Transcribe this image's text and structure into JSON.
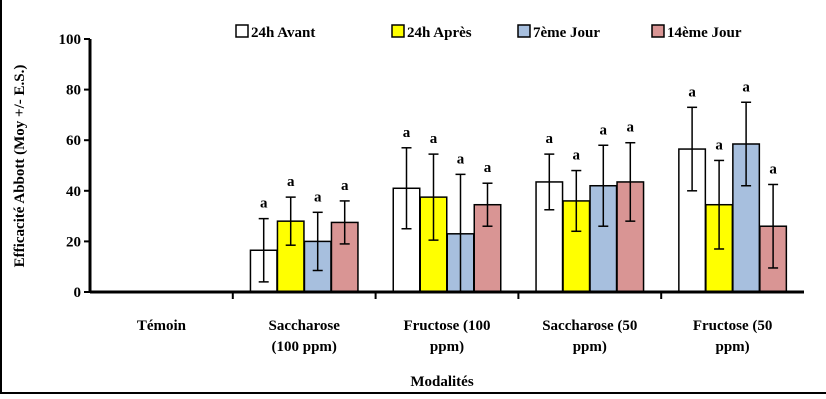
{
  "chart_data": {
    "type": "bar",
    "title": "",
    "xlabel": "Modalités",
    "ylabel": "Efficacité Abbott (Moy +/- E.S.)",
    "ylim": [
      0,
      100
    ],
    "yticks": [
      0,
      20,
      40,
      60,
      80,
      100
    ],
    "grid": false,
    "legend_position": "top",
    "categories": [
      [
        "Témoin"
      ],
      [
        "Saccharose",
        "(100 ppm)"
      ],
      [
        "Fructose  (100",
        "ppm)"
      ],
      [
        "Saccharose (50",
        "ppm)"
      ],
      [
        "Fructose (50",
        "ppm)"
      ]
    ],
    "series": [
      {
        "name": "24h Avant",
        "color": "#ffffff",
        "values": [
          0,
          16.5,
          41,
          43.5,
          56.5
        ],
        "errors": [
          0,
          12.5,
          16,
          11,
          16.5
        ],
        "letters": [
          "",
          "a",
          "a",
          "a",
          "a"
        ]
      },
      {
        "name": "24h Après",
        "color": "#ffff00",
        "values": [
          0,
          28,
          37.5,
          36,
          34.5
        ],
        "errors": [
          0,
          9.5,
          17,
          12,
          17.5
        ],
        "letters": [
          "",
          "a",
          "a",
          "a",
          "a"
        ]
      },
      {
        "name": "7ème Jour",
        "color": "#a7bfde",
        "values": [
          0,
          20,
          23,
          42,
          58.5
        ],
        "errors": [
          0,
          11.5,
          23.5,
          16,
          16.5
        ],
        "letters": [
          "",
          "a",
          "a",
          "a",
          "a"
        ]
      },
      {
        "name": "14ème Jour",
        "color": "#d99594",
        "values": [
          0,
          27.5,
          34.5,
          43.5,
          26
        ],
        "errors": [
          0,
          8.5,
          8.5,
          15.5,
          16.5
        ],
        "letters": [
          "",
          "a",
          "a",
          "a",
          "a"
        ]
      }
    ]
  }
}
